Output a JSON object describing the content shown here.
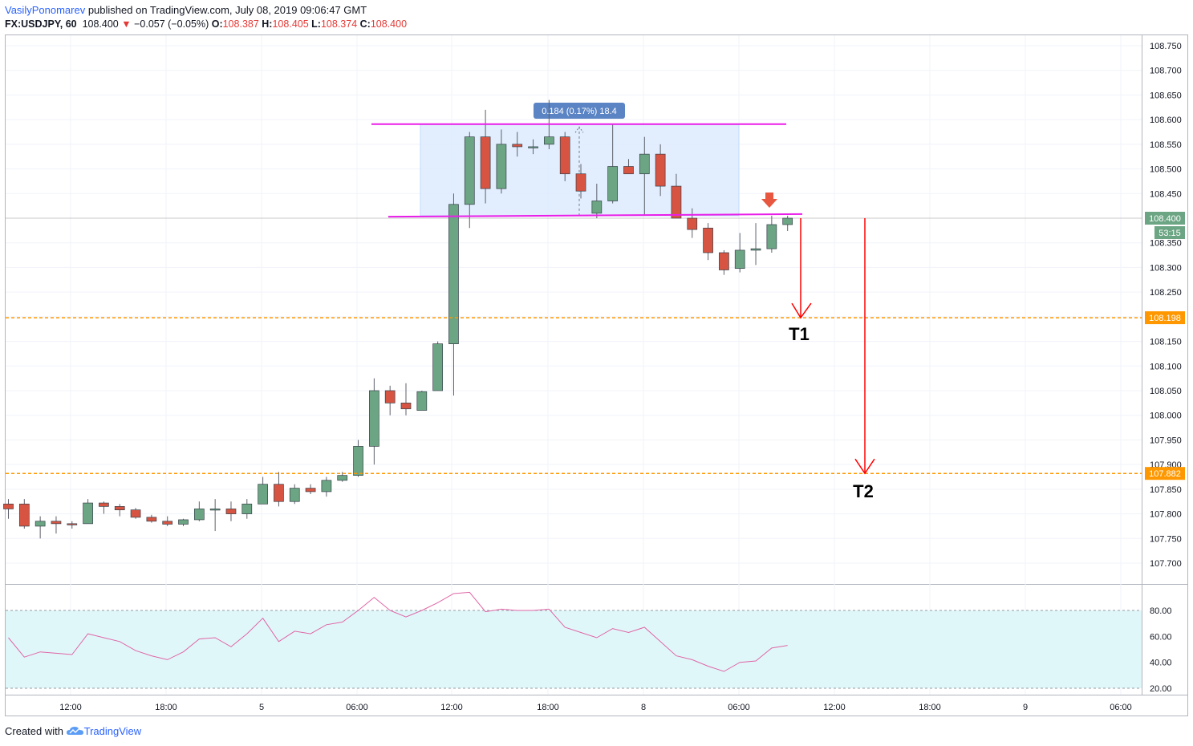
{
  "header": {
    "author": "VasilyPonomarev",
    "published": " published on TradingView.com, July 08, 2019 09:06:47 GMT",
    "symbol": "FX:USDJPY, 60",
    "last": "108.400",
    "arrow": "▼",
    "change": "−0.057 (−0.05%)",
    "o_label": "O:",
    "o": "108.387",
    "h_label": "H:",
    "h": "108.405",
    "l_label": "L:",
    "l": "108.374",
    "c_label": "C:",
    "c": "108.400"
  },
  "footer": {
    "created": "Created with",
    "brand": "TradingView"
  },
  "colors": {
    "up": "#6ba583",
    "down": "#d75442",
    "level": "#ff9800",
    "magenta": "#e91ee9",
    "target": "#ff0000",
    "rsi_line": "#e066a6",
    "rsi_band": "#e0f7fa",
    "box": "#dbeafe"
  },
  "chart_data": {
    "type": "candlestick",
    "symbol": "FX:USDJPY",
    "timeframe": "60",
    "y_ticks": [
      "108.750",
      "108.700",
      "108.650",
      "108.600",
      "108.550",
      "108.500",
      "108.450",
      "108.400",
      "108.350",
      "108.300",
      "108.250",
      "108.200",
      "108.150",
      "108.100",
      "108.050",
      "108.000",
      "107.950",
      "107.900",
      "107.850",
      "107.800",
      "107.750",
      "107.700"
    ],
    "x_ticks": [
      "12:00",
      "18:00",
      "5",
      "06:00",
      "12:00",
      "18:00",
      "8",
      "06:00",
      "12:00",
      "18:00",
      "9",
      "06:00"
    ],
    "ylim": [
      107.66,
      108.81
    ],
    "candles": [
      {
        "o": 107.82,
        "h": 107.83,
        "l": 107.79,
        "c": 107.81
      },
      {
        "o": 107.82,
        "h": 107.83,
        "l": 107.77,
        "c": 107.775
      },
      {
        "o": 107.775,
        "h": 107.795,
        "l": 107.75,
        "c": 107.785
      },
      {
        "o": 107.785,
        "h": 107.795,
        "l": 107.76,
        "c": 107.78
      },
      {
        "o": 107.78,
        "h": 107.785,
        "l": 107.77,
        "c": 107.778
      },
      {
        "o": 107.78,
        "h": 107.83,
        "l": 107.78,
        "c": 107.822
      },
      {
        "o": 107.822,
        "h": 107.825,
        "l": 107.8,
        "c": 107.815
      },
      {
        "o": 107.815,
        "h": 107.82,
        "l": 107.795,
        "c": 107.808
      },
      {
        "o": 107.808,
        "h": 107.812,
        "l": 107.79,
        "c": 107.793
      },
      {
        "o": 107.793,
        "h": 107.798,
        "l": 107.782,
        "c": 107.785
      },
      {
        "o": 107.785,
        "h": 107.795,
        "l": 107.775,
        "c": 107.779
      },
      {
        "o": 107.779,
        "h": 107.79,
        "l": 107.775,
        "c": 107.788
      },
      {
        "o": 107.788,
        "h": 107.825,
        "l": 107.785,
        "c": 107.81
      },
      {
        "o": 107.81,
        "h": 107.83,
        "l": 107.765,
        "c": 107.81
      },
      {
        "o": 107.81,
        "h": 107.825,
        "l": 107.785,
        "c": 107.8
      },
      {
        "o": 107.8,
        "h": 107.83,
        "l": 107.79,
        "c": 107.82
      },
      {
        "o": 107.82,
        "h": 107.875,
        "l": 107.82,
        "c": 107.86
      },
      {
        "o": 107.86,
        "h": 107.885,
        "l": 107.815,
        "c": 107.825
      },
      {
        "o": 107.825,
        "h": 107.86,
        "l": 107.82,
        "c": 107.852
      },
      {
        "o": 107.852,
        "h": 107.86,
        "l": 107.84,
        "c": 107.845
      },
      {
        "o": 107.845,
        "h": 107.875,
        "l": 107.835,
        "c": 107.868
      },
      {
        "o": 107.868,
        "h": 107.885,
        "l": 107.865,
        "c": 107.878
      },
      {
        "o": 107.878,
        "h": 107.95,
        "l": 107.875,
        "c": 107.937
      },
      {
        "o": 107.937,
        "h": 108.075,
        "l": 107.9,
        "c": 108.05
      },
      {
        "o": 108.05,
        "h": 108.06,
        "l": 108.0,
        "c": 108.025
      },
      {
        "o": 108.025,
        "h": 108.065,
        "l": 108.0,
        "c": 108.013
      },
      {
        "o": 108.01,
        "h": 108.05,
        "l": 108.01,
        "c": 108.048
      },
      {
        "o": 108.05,
        "h": 108.15,
        "l": 108.05,
        "c": 108.145
      },
      {
        "o": 108.145,
        "h": 108.45,
        "l": 108.04,
        "c": 108.428
      },
      {
        "o": 108.428,
        "h": 108.575,
        "l": 108.38,
        "c": 108.565
      },
      {
        "o": 108.565,
        "h": 108.62,
        "l": 108.43,
        "c": 108.46
      },
      {
        "o": 108.46,
        "h": 108.58,
        "l": 108.45,
        "c": 108.55
      },
      {
        "o": 108.55,
        "h": 108.575,
        "l": 108.525,
        "c": 108.545
      },
      {
        "o": 108.545,
        "h": 108.56,
        "l": 108.53,
        "c": 108.545
      },
      {
        "o": 108.55,
        "h": 108.64,
        "l": 108.54,
        "c": 108.565
      },
      {
        "o": 108.565,
        "h": 108.575,
        "l": 108.475,
        "c": 108.49
      },
      {
        "o": 108.49,
        "h": 108.51,
        "l": 108.44,
        "c": 108.455
      },
      {
        "o": 108.41,
        "h": 108.47,
        "l": 108.4,
        "c": 108.435
      },
      {
        "o": 108.435,
        "h": 108.59,
        "l": 108.43,
        "c": 108.505
      },
      {
        "o": 108.505,
        "h": 108.52,
        "l": 108.49,
        "c": 108.49
      },
      {
        "o": 108.49,
        "h": 108.565,
        "l": 108.405,
        "c": 108.53
      },
      {
        "o": 108.53,
        "h": 108.55,
        "l": 108.445,
        "c": 108.465
      },
      {
        "o": 108.465,
        "h": 108.49,
        "l": 108.4,
        "c": 108.4
      },
      {
        "o": 108.4,
        "h": 108.42,
        "l": 108.36,
        "c": 108.377
      },
      {
        "o": 108.38,
        "h": 108.39,
        "l": 108.315,
        "c": 108.33
      },
      {
        "o": 108.33,
        "h": 108.335,
        "l": 108.285,
        "c": 108.295
      },
      {
        "o": 108.298,
        "h": 108.37,
        "l": 108.29,
        "c": 108.335
      },
      {
        "o": 108.335,
        "h": 108.39,
        "l": 108.305,
        "c": 108.338
      },
      {
        "o": 108.338,
        "h": 108.405,
        "l": 108.33,
        "c": 108.387
      },
      {
        "o": 108.387,
        "h": 108.405,
        "l": 108.374,
        "c": 108.4
      }
    ],
    "levels": [
      {
        "price": 108.198,
        "label": "108.198"
      },
      {
        "price": 107.882,
        "label": "107.882"
      }
    ],
    "current_price_label": "108.400",
    "countdown_label": "53:15",
    "range_box": {
      "top": 108.59,
      "bottom": 108.405
    },
    "measure_label": "0.184 (0.17%) 18.4",
    "targets": [
      "T1",
      "T2"
    ],
    "rsi": {
      "ticks": [
        "80.00",
        "60.00",
        "40.00",
        "20.00"
      ],
      "overbought": 80,
      "oversold": 20,
      "values": [
        59,
        44,
        48,
        47,
        46,
        62,
        59,
        56,
        49,
        45,
        42,
        48,
        58,
        59,
        52,
        62,
        74,
        56,
        64,
        62,
        69,
        71,
        80,
        90,
        80,
        75,
        80,
        86,
        93,
        94,
        79,
        81,
        80,
        80,
        81,
        67,
        63,
        59,
        66,
        63,
        67,
        56,
        45,
        42,
        37,
        33,
        40,
        41,
        51,
        53
      ]
    }
  }
}
